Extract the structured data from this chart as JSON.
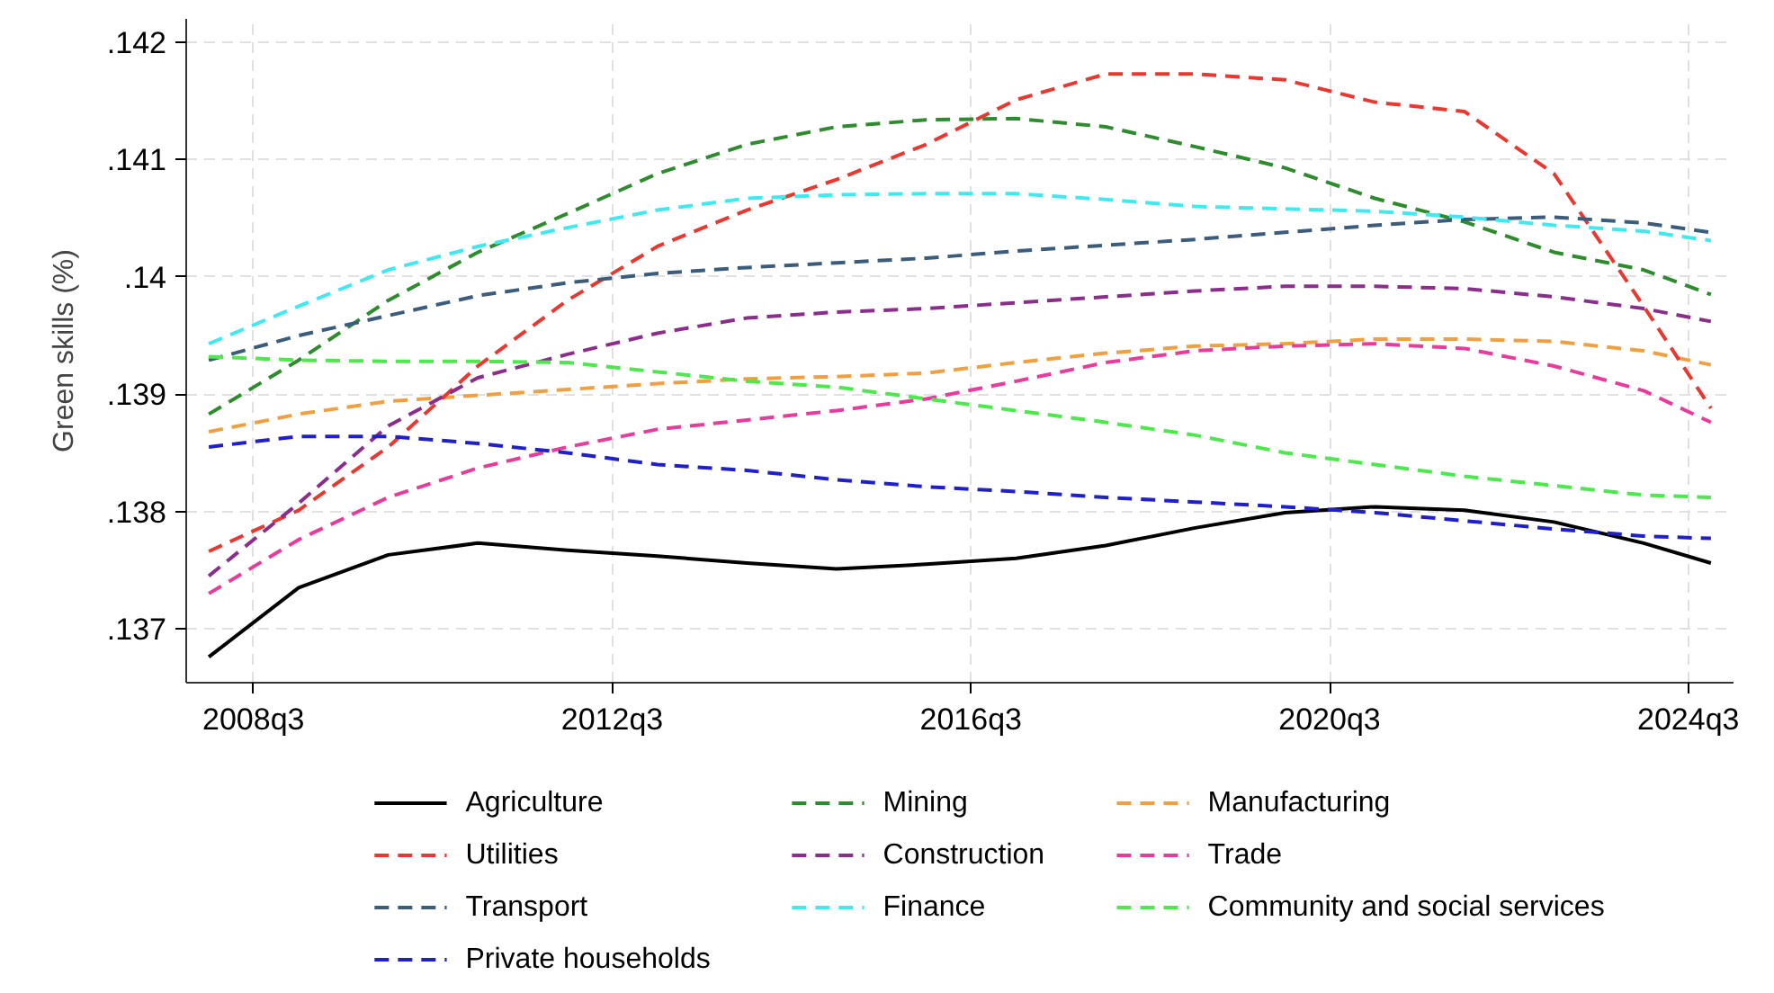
{
  "chart_data": {
    "type": "line",
    "ylabel": "Green skills (%)",
    "x": [
      "2008-01",
      "2009-01",
      "2010-01",
      "2011-01",
      "2012-01",
      "2013-01",
      "2014-01",
      "2015-01",
      "2016-01",
      "2017-01",
      "2018-01",
      "2019-01",
      "2020-01",
      "2021-01",
      "2022-01",
      "2023-01",
      "2024-01",
      "2024-10"
    ],
    "xlim": [
      "2007-10",
      "2025-01"
    ],
    "ylim": [
      0.13654,
      0.1422
    ],
    "xticks": [
      {
        "value": "2008-07",
        "label": "2008q3"
      },
      {
        "value": "2012-07",
        "label": "2012q3"
      },
      {
        "value": "2016-07",
        "label": "2016q3"
      },
      {
        "value": "2020-07",
        "label": "2020q3"
      },
      {
        "value": "2024-07",
        "label": "2024q3"
      }
    ],
    "yticks": [
      {
        "value": 0.137,
        "label": ".137"
      },
      {
        "value": 0.138,
        "label": ".138"
      },
      {
        "value": 0.139,
        "label": ".139"
      },
      {
        "value": 0.14,
        "label": ".14"
      },
      {
        "value": 0.141,
        "label": ".141"
      },
      {
        "value": 0.142,
        "label": ".142"
      }
    ],
    "grid": true,
    "legend": "bottom",
    "series": [
      {
        "name": "Agriculture",
        "color": "#000000",
        "line_style": "solid",
        "values": [
          0.13676,
          0.13735,
          0.13763,
          0.13773,
          0.13767,
          0.13762,
          0.13756,
          0.13751,
          0.13755,
          0.1376,
          0.13771,
          0.13786,
          0.13799,
          0.13804,
          0.13801,
          0.13791,
          0.13773,
          0.13756
        ]
      },
      {
        "name": "Mining",
        "color": "#2e8b2e",
        "line_style": "dashed",
        "values": [
          0.13883,
          0.13929,
          0.1398,
          0.14021,
          0.14054,
          0.14088,
          0.14113,
          0.14128,
          0.14134,
          0.14135,
          0.14128,
          0.14111,
          0.14093,
          0.14067,
          0.14047,
          0.14021,
          0.14006,
          0.13985
        ]
      },
      {
        "name": "Manufacturing",
        "color": "#f0a040",
        "line_style": "dashed",
        "values": [
          0.13868,
          0.13883,
          0.13894,
          0.13899,
          0.13904,
          0.13909,
          0.13913,
          0.13915,
          0.13918,
          0.13927,
          0.13935,
          0.13941,
          0.13943,
          0.13947,
          0.13947,
          0.13945,
          0.13937,
          0.13925
        ]
      },
      {
        "name": "Utilities",
        "color": "#e8382f",
        "line_style": "dashed",
        "values": [
          0.13766,
          0.13801,
          0.13855,
          0.13924,
          0.1398,
          0.14026,
          0.14057,
          0.14083,
          0.14113,
          0.14151,
          0.14173,
          0.14173,
          0.14168,
          0.14149,
          0.14141,
          0.14088,
          0.13975,
          0.13888
        ]
      },
      {
        "name": "Construction",
        "color": "#8b2e8b",
        "line_style": "dashed",
        "values": [
          0.13745,
          0.13807,
          0.13873,
          0.13914,
          0.13934,
          0.13952,
          0.13965,
          0.1397,
          0.13973,
          0.13978,
          0.13983,
          0.13988,
          0.13992,
          0.13992,
          0.1399,
          0.13983,
          0.13973,
          0.13962
        ]
      },
      {
        "name": "Trade",
        "color": "#e83c9c",
        "line_style": "dashed",
        "values": [
          0.1373,
          0.13776,
          0.13812,
          0.13837,
          0.13855,
          0.1387,
          0.13878,
          0.13886,
          0.13896,
          0.13911,
          0.13927,
          0.13937,
          0.13941,
          0.13943,
          0.13939,
          0.13924,
          0.13903,
          0.13876
        ]
      },
      {
        "name": "Transport",
        "color": "#3c5c7c",
        "line_style": "dashed",
        "values": [
          0.13929,
          0.1395,
          0.13967,
          0.13984,
          0.13995,
          0.14003,
          0.14008,
          0.14012,
          0.14016,
          0.14022,
          0.14027,
          0.14032,
          0.14038,
          0.14044,
          0.14049,
          0.14051,
          0.14046,
          0.14038
        ]
      },
      {
        "name": "Finance",
        "color": "#40e8f0",
        "line_style": "dashed",
        "values": [
          0.13943,
          0.13975,
          0.14006,
          0.14026,
          0.14042,
          0.14057,
          0.14067,
          0.1407,
          0.14071,
          0.14071,
          0.14066,
          0.1406,
          0.14058,
          0.14056,
          0.14051,
          0.14044,
          0.14039,
          0.14031
        ]
      },
      {
        "name": "Community and social services",
        "color": "#4ce84c",
        "line_style": "dashed",
        "values": [
          0.13932,
          0.13929,
          0.13928,
          0.13928,
          0.13927,
          0.13919,
          0.13911,
          0.13906,
          0.13896,
          0.13886,
          0.13876,
          0.13865,
          0.1385,
          0.1384,
          0.1383,
          0.13822,
          0.13814,
          0.13812
        ]
      },
      {
        "name": "Private households",
        "color": "#2020c8",
        "line_style": "dashed",
        "values": [
          0.13855,
          0.13864,
          0.13864,
          0.13858,
          0.1385,
          0.1384,
          0.13835,
          0.13827,
          0.13821,
          0.13817,
          0.13812,
          0.13808,
          0.13804,
          0.13799,
          0.13792,
          0.13785,
          0.13779,
          0.13777
        ]
      }
    ]
  }
}
